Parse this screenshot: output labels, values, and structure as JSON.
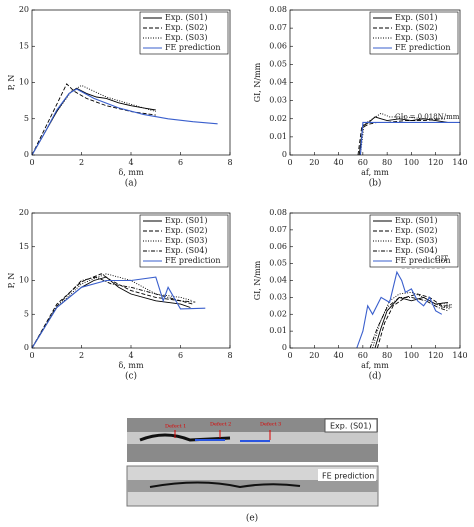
{
  "chart_data": [
    {
      "type": "line",
      "caption": "(a)",
      "xlabel": "δ, mm",
      "ylabel": "P, N",
      "xlim": [
        0,
        8
      ],
      "xticks": [
        0,
        2,
        4,
        6,
        8
      ],
      "ylim": [
        0,
        20
      ],
      "yticks": [
        0,
        5,
        10,
        15,
        20
      ],
      "series": [
        {
          "name": "Exp. (S01)",
          "color": "#000000",
          "dash": "solid",
          "x": [
            0,
            0.5,
            1,
            1.5,
            1.8,
            2.2,
            2.6,
            3,
            3.5,
            4,
            4.5,
            5
          ],
          "values": [
            0,
            3,
            6,
            8.5,
            9.2,
            8.5,
            8,
            7.8,
            7.2,
            6.8,
            6.5,
            6.2
          ]
        },
        {
          "name": "Exp. (S02)",
          "color": "#000000",
          "dash": "dashed",
          "x": [
            0,
            0.5,
            1,
            1.4,
            1.7,
            2.2,
            3,
            4,
            5
          ],
          "values": [
            0,
            3.5,
            7,
            9.8,
            8.8,
            7.8,
            6.8,
            6,
            5.5
          ]
        },
        {
          "name": "Exp. (S03)",
          "color": "#000000",
          "dash": "dotted",
          "x": [
            0,
            0.5,
            1,
            1.6,
            2,
            2.5,
            3,
            4,
            5
          ],
          "values": [
            0,
            3,
            6,
            8.8,
            9.6,
            8.8,
            8,
            7,
            6
          ]
        },
        {
          "name": "FE prediction",
          "color": "#3a5fcd",
          "dash": "solid",
          "x": [
            0,
            0.5,
            1,
            1.5,
            1.8,
            2.5,
            3.5,
            4.5,
            5.5,
            6.5,
            7.5
          ],
          "values": [
            0,
            3,
            6.2,
            8.5,
            9.1,
            7.8,
            6.5,
            5.6,
            5,
            4.6,
            4.3
          ]
        }
      ]
    },
    {
      "type": "line",
      "caption": "(b)",
      "xlabel": "af, mm",
      "ylabel": "GI, N/mm",
      "xlim": [
        0,
        140
      ],
      "xticks": [
        0,
        20,
        40,
        60,
        80,
        100,
        120,
        140
      ],
      "ylim": [
        0,
        0.08
      ],
      "yticks": [
        0,
        0.01,
        0.02,
        0.03,
        0.04,
        0.05,
        0.06,
        0.07,
        0.08
      ],
      "annotations": [
        "GIc = 0.018N/mm"
      ],
      "series": [
        {
          "name": "Exp. (S01)",
          "color": "#000000",
          "dash": "solid",
          "x": [
            57,
            60,
            65,
            70,
            75,
            80,
            90,
            100,
            110,
            120,
            130
          ],
          "values": [
            0,
            0.016,
            0.018,
            0.021,
            0.02,
            0.019,
            0.02,
            0.019,
            0.02,
            0.019,
            0.018
          ]
        },
        {
          "name": "Exp. (S02)",
          "color": "#000000",
          "dash": "dashed",
          "x": [
            56,
            59,
            65,
            72,
            80,
            95,
            110,
            125
          ],
          "values": [
            0,
            0.015,
            0.017,
            0.018,
            0.018,
            0.019,
            0.019,
            0.02
          ]
        },
        {
          "name": "Exp. (S03)",
          "color": "#000000",
          "dash": "dotted",
          "x": [
            58,
            61,
            68,
            75,
            82,
            95,
            110,
            128
          ],
          "values": [
            0,
            0.017,
            0.02,
            0.023,
            0.021,
            0.021,
            0.02,
            0.02
          ]
        },
        {
          "name": "FE prediction",
          "color": "#3a5fcd",
          "dash": "solid",
          "x": [
            58,
            60,
            70,
            100,
            140
          ],
          "values": [
            0,
            0.018,
            0.018,
            0.018,
            0.018
          ]
        }
      ]
    },
    {
      "type": "line",
      "caption": "(c)",
      "xlabel": "δ, mm",
      "ylabel": "P, N",
      "xlim": [
        0,
        8
      ],
      "xticks": [
        0,
        2,
        4,
        6,
        8
      ],
      "ylim": [
        0,
        20
      ],
      "yticks": [
        0,
        5,
        10,
        15,
        20
      ],
      "series": [
        {
          "name": "Exp. (S01)",
          "color": "#000000",
          "dash": "solid",
          "x": [
            0,
            1,
            2,
            2.5,
            3,
            3.5,
            4,
            5,
            6,
            6.4
          ],
          "values": [
            0,
            6,
            9,
            10,
            10.5,
            9,
            8,
            7,
            6.5,
            6
          ]
        },
        {
          "name": "Exp. (S02)",
          "color": "#000000",
          "dash": "dashed",
          "x": [
            0,
            1,
            2,
            2.8,
            3.2,
            4,
            5,
            6,
            6.5
          ],
          "values": [
            0,
            6.5,
            9.8,
            11,
            10,
            8.5,
            7.5,
            7,
            6.5
          ]
        },
        {
          "name": "Exp. (S03)",
          "color": "#000000",
          "dash": "dotted",
          "x": [
            0,
            1,
            2,
            3,
            4,
            5,
            6,
            6.5
          ],
          "values": [
            0,
            6,
            9.5,
            11,
            10,
            8,
            7.5,
            7
          ]
        },
        {
          "name": "Exp. (S04)",
          "color": "#000000",
          "dash": "dashdot",
          "x": [
            0,
            1,
            2,
            2.6,
            3.2,
            4,
            5,
            6,
            6.6
          ],
          "values": [
            0,
            6.2,
            10,
            10.5,
            9.5,
            9,
            8,
            7,
            6.8
          ]
        },
        {
          "name": "FE prediction",
          "color": "#3a5fcd",
          "dash": "solid",
          "x": [
            0,
            1,
            2,
            3,
            4,
            5,
            5.3,
            5.5,
            6,
            7
          ],
          "values": [
            0,
            6,
            9,
            10,
            10,
            10.5,
            7,
            9,
            5.8,
            5.9
          ]
        }
      ]
    },
    {
      "type": "line",
      "caption": "(d)",
      "xlabel": "af, mm",
      "ylabel": "GI, N/mm",
      "xlim": [
        0,
        140
      ],
      "xticks": [
        0,
        20,
        40,
        60,
        80,
        100,
        120,
        140
      ],
      "ylim": [
        0,
        0.08
      ],
      "yticks": [
        0,
        0.01,
        0.02,
        0.03,
        0.04,
        0.05,
        0.06,
        0.07,
        0.08
      ],
      "annotations": [
        "GIT",
        "GIc"
      ],
      "series": [
        {
          "name": "Exp. (S01)",
          "color": "#000000",
          "dash": "solid",
          "x": [
            70,
            75,
            80,
            90,
            100,
            110,
            120,
            130
          ],
          "values": [
            0,
            0.012,
            0.022,
            0.03,
            0.028,
            0.03,
            0.026,
            0.027
          ]
        },
        {
          "name": "Exp. (S02)",
          "color": "#000000",
          "dash": "dashed",
          "x": [
            72,
            78,
            85,
            95,
            105,
            115,
            125,
            132
          ],
          "values": [
            0,
            0.015,
            0.025,
            0.03,
            0.032,
            0.03,
            0.025,
            0.025
          ]
        },
        {
          "name": "Exp. (S03)",
          "color": "#000000",
          "dash": "dotted",
          "x": [
            68,
            74,
            82,
            90,
            100,
            110,
            120,
            132
          ],
          "values": [
            0,
            0.015,
            0.028,
            0.032,
            0.033,
            0.03,
            0.026,
            0.023
          ]
        },
        {
          "name": "Exp. (S04)",
          "color": "#000000",
          "dash": "dashdot",
          "x": [
            66,
            72,
            80,
            90,
            100,
            112,
            122,
            130
          ],
          "values": [
            0,
            0.012,
            0.024,
            0.03,
            0.03,
            0.028,
            0.024,
            0.022
          ]
        },
        {
          "name": "FE prediction",
          "color": "#3a5fcd",
          "dash": "solid",
          "x": [
            55,
            60,
            64,
            68,
            75,
            82,
            88,
            92,
            95,
            100,
            105,
            110,
            115,
            120,
            125
          ],
          "values": [
            0,
            0.01,
            0.025,
            0.02,
            0.03,
            0.027,
            0.045,
            0.04,
            0.033,
            0.035,
            0.028,
            0.025,
            0.03,
            0.022,
            0.02
          ]
        }
      ]
    }
  ],
  "image": {
    "labels": [
      "Defect 1",
      "Defect 2",
      "Defect 3",
      "Exp. (S01)",
      "FE prediction"
    ],
    "caption": "(e)"
  }
}
